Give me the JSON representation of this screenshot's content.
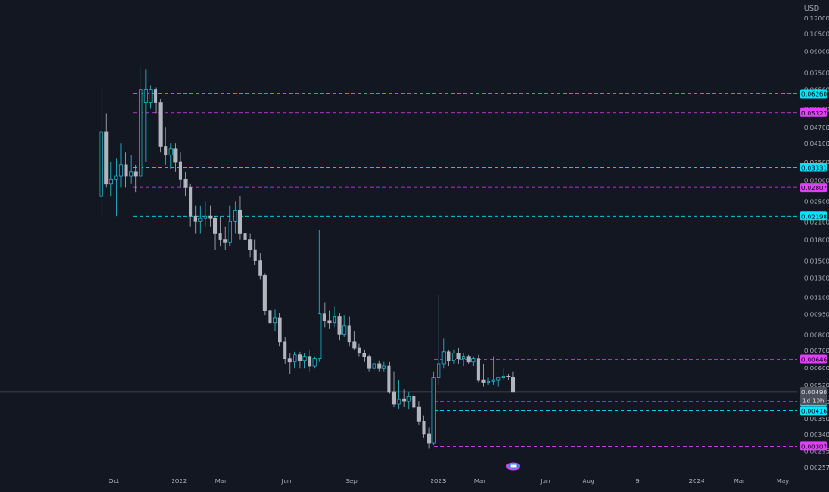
{
  "chart_data": {
    "type": "candlestick",
    "scale": "log",
    "currency": "USD",
    "y_ticks": [
      "0.12000",
      "0.10500",
      "0.09000",
      "0.07500",
      "0.06500",
      "0.05500",
      "0.04700",
      "0.04100",
      "0.03500",
      "0.03000",
      "0.02500",
      "0.02100",
      "0.01800",
      "0.01500",
      "0.01300",
      "0.01100",
      "0.00950",
      "0.00800",
      "0.00700",
      "0.00600",
      "0.00520",
      "0.00450",
      "0.00390",
      "0.00340",
      "0.00295",
      "0.00257"
    ],
    "x_ticks": [
      {
        "label": "Oct",
        "date": "2021-10-01"
      },
      {
        "label": "2022",
        "date": "2022-01-01"
      },
      {
        "label": "Mar",
        "date": "2022-03-01"
      },
      {
        "label": "Jun",
        "date": "2022-06-01"
      },
      {
        "label": "Sep",
        "date": "2022-09-01"
      },
      {
        "label": "2023",
        "date": "2023-01-01"
      },
      {
        "label": "Mar",
        "date": "2023-03-01"
      },
      {
        "label": "Jun",
        "date": "2023-06-01"
      },
      {
        "label": "Aug",
        "date": "2023-08-01"
      },
      {
        "label": "9",
        "date": "2023-10-09"
      },
      {
        "label": "2024",
        "date": "2024-01-01"
      },
      {
        "label": "Mar",
        "date": "2024-03-01"
      },
      {
        "label": "May",
        "date": "2024-05-01"
      }
    ],
    "levels": [
      {
        "label": "0.06260",
        "value": 0.0626,
        "color": "#00e5ff",
        "kind": "support"
      },
      {
        "label": "0.05327",
        "value": 0.05327,
        "color": "#e040fb",
        "kind": "resistance"
      },
      {
        "label": "0.03331",
        "value": 0.03331,
        "color": "#00e5ff",
        "kind": "support"
      },
      {
        "label": "0.02807",
        "value": 0.02807,
        "color": "#e040fb",
        "kind": "resistance"
      },
      {
        "label": "0.02198",
        "value": 0.02198,
        "color": "#00e5ff",
        "kind": "support"
      },
      {
        "label": "0.00646",
        "value": 0.00646,
        "color": "#e040fb",
        "kind": "resistance"
      },
      {
        "label": "0.00450",
        "value": 0.0045,
        "color": "#00e5ff",
        "kind": "support"
      },
      {
        "label": "0.00416",
        "value": 0.00416,
        "color": "#00e5ff",
        "kind": "support"
      },
      {
        "label": "0.00307",
        "value": 0.00307,
        "color": "#e040fb",
        "kind": "resistance"
      }
    ],
    "current_price": {
      "label": "0.00490",
      "value": 0.0049,
      "countdown": "1d 10h"
    },
    "candles": [
      {
        "date": "2021-09-13",
        "o": 0.026,
        "h": 0.067,
        "l": 0.022,
        "c": 0.045
      },
      {
        "date": "2021-09-20",
        "o": 0.045,
        "h": 0.053,
        "l": 0.028,
        "c": 0.029
      },
      {
        "date": "2021-09-27",
        "o": 0.029,
        "h": 0.035,
        "l": 0.026,
        "c": 0.03
      },
      {
        "date": "2021-10-04",
        "o": 0.03,
        "h": 0.036,
        "l": 0.022,
        "c": 0.031
      },
      {
        "date": "2021-10-11",
        "o": 0.031,
        "h": 0.041,
        "l": 0.028,
        "c": 0.034
      },
      {
        "date": "2021-10-18",
        "o": 0.034,
        "h": 0.038,
        "l": 0.028,
        "c": 0.031
      },
      {
        "date": "2021-10-25",
        "o": 0.031,
        "h": 0.037,
        "l": 0.029,
        "c": 0.032
      },
      {
        "date": "2021-11-01",
        "o": 0.032,
        "h": 0.034,
        "l": 0.027,
        "c": 0.031
      },
      {
        "date": "2021-11-08",
        "o": 0.031,
        "h": 0.079,
        "l": 0.03,
        "c": 0.065
      },
      {
        "date": "2021-11-15",
        "o": 0.058,
        "h": 0.077,
        "l": 0.035,
        "c": 0.065
      },
      {
        "date": "2021-11-22",
        "o": 0.058,
        "h": 0.067,
        "l": 0.055,
        "c": 0.065
      },
      {
        "date": "2021-11-29",
        "o": 0.065,
        "h": 0.066,
        "l": 0.053,
        "c": 0.058
      },
      {
        "date": "2021-12-06",
        "o": 0.058,
        "h": 0.06,
        "l": 0.038,
        "c": 0.04
      },
      {
        "date": "2021-12-13",
        "o": 0.04,
        "h": 0.047,
        "l": 0.034,
        "c": 0.037
      },
      {
        "date": "2021-12-20",
        "o": 0.037,
        "h": 0.041,
        "l": 0.033,
        "c": 0.039
      },
      {
        "date": "2021-12-27",
        "o": 0.039,
        "h": 0.041,
        "l": 0.032,
        "c": 0.035
      },
      {
        "date": "2022-01-03",
        "o": 0.035,
        "h": 0.038,
        "l": 0.028,
        "c": 0.03
      },
      {
        "date": "2022-01-10",
        "o": 0.03,
        "h": 0.032,
        "l": 0.026,
        "c": 0.028
      },
      {
        "date": "2022-01-17",
        "o": 0.028,
        "h": 0.029,
        "l": 0.02,
        "c": 0.022
      },
      {
        "date": "2022-01-24",
        "o": 0.022,
        "h": 0.024,
        "l": 0.019,
        "c": 0.021
      },
      {
        "date": "2022-01-31",
        "o": 0.021,
        "h": 0.024,
        "l": 0.019,
        "c": 0.0215
      },
      {
        "date": "2022-02-07",
        "o": 0.0215,
        "h": 0.025,
        "l": 0.02,
        "c": 0.022
      },
      {
        "date": "2022-02-14",
        "o": 0.022,
        "h": 0.024,
        "l": 0.02,
        "c": 0.0215
      },
      {
        "date": "2022-02-21",
        "o": 0.0215,
        "h": 0.022,
        "l": 0.0165,
        "c": 0.019
      },
      {
        "date": "2022-02-28",
        "o": 0.019,
        "h": 0.022,
        "l": 0.017,
        "c": 0.018
      },
      {
        "date": "2022-03-07",
        "o": 0.018,
        "h": 0.02,
        "l": 0.0165,
        "c": 0.0175
      },
      {
        "date": "2022-03-14",
        "o": 0.0175,
        "h": 0.024,
        "l": 0.017,
        "c": 0.021
      },
      {
        "date": "2022-03-21",
        "o": 0.021,
        "h": 0.025,
        "l": 0.019,
        "c": 0.023
      },
      {
        "date": "2022-03-28",
        "o": 0.023,
        "h": 0.026,
        "l": 0.018,
        "c": 0.019
      },
      {
        "date": "2022-04-04",
        "o": 0.019,
        "h": 0.02,
        "l": 0.017,
        "c": 0.018
      },
      {
        "date": "2022-04-11",
        "o": 0.018,
        "h": 0.019,
        "l": 0.0155,
        "c": 0.0165
      },
      {
        "date": "2022-04-18",
        "o": 0.0165,
        "h": 0.018,
        "l": 0.0145,
        "c": 0.015
      },
      {
        "date": "2022-04-25",
        "o": 0.015,
        "h": 0.016,
        "l": 0.0128,
        "c": 0.0132
      },
      {
        "date": "2022-05-02",
        "o": 0.0132,
        "h": 0.0135,
        "l": 0.0094,
        "c": 0.0098
      },
      {
        "date": "2022-05-09",
        "o": 0.0098,
        "h": 0.0102,
        "l": 0.0056,
        "c": 0.0088
      },
      {
        "date": "2022-05-16",
        "o": 0.0088,
        "h": 0.0099,
        "l": 0.0082,
        "c": 0.0092
      },
      {
        "date": "2022-05-23",
        "o": 0.0092,
        "h": 0.0096,
        "l": 0.0072,
        "c": 0.0075
      },
      {
        "date": "2022-05-30",
        "o": 0.0075,
        "h": 0.0078,
        "l": 0.0062,
        "c": 0.0065
      },
      {
        "date": "2022-06-06",
        "o": 0.0065,
        "h": 0.0068,
        "l": 0.0057,
        "c": 0.0063
      },
      {
        "date": "2022-06-13",
        "o": 0.0063,
        "h": 0.0069,
        "l": 0.006,
        "c": 0.0067
      },
      {
        "date": "2022-06-20",
        "o": 0.0067,
        "h": 0.0069,
        "l": 0.006,
        "c": 0.0064
      },
      {
        "date": "2022-06-27",
        "o": 0.0064,
        "h": 0.0068,
        "l": 0.006,
        "c": 0.0066
      },
      {
        "date": "2022-07-04",
        "o": 0.0066,
        "h": 0.007,
        "l": 0.0058,
        "c": 0.0061
      },
      {
        "date": "2022-07-11",
        "o": 0.0061,
        "h": 0.0066,
        "l": 0.006,
        "c": 0.0065
      },
      {
        "date": "2022-07-18",
        "o": 0.0065,
        "h": 0.0195,
        "l": 0.0063,
        "c": 0.0095
      },
      {
        "date": "2022-07-25",
        "o": 0.0095,
        "h": 0.0105,
        "l": 0.0085,
        "c": 0.009
      },
      {
        "date": "2022-08-01",
        "o": 0.009,
        "h": 0.0098,
        "l": 0.0084,
        "c": 0.0088
      },
      {
        "date": "2022-08-08",
        "o": 0.0088,
        "h": 0.0101,
        "l": 0.0085,
        "c": 0.0093
      },
      {
        "date": "2022-08-15",
        "o": 0.0093,
        "h": 0.0096,
        "l": 0.0076,
        "c": 0.008
      },
      {
        "date": "2022-08-22",
        "o": 0.008,
        "h": 0.0094,
        "l": 0.0078,
        "c": 0.0086
      },
      {
        "date": "2022-08-29",
        "o": 0.0086,
        "h": 0.0093,
        "l": 0.0072,
        "c": 0.0075
      },
      {
        "date": "2022-09-05",
        "o": 0.0075,
        "h": 0.0082,
        "l": 0.007,
        "c": 0.0071
      },
      {
        "date": "2022-09-12",
        "o": 0.0071,
        "h": 0.0074,
        "l": 0.0066,
        "c": 0.0068
      },
      {
        "date": "2022-09-19",
        "o": 0.0068,
        "h": 0.007,
        "l": 0.0063,
        "c": 0.0066
      },
      {
        "date": "2022-09-26",
        "o": 0.0066,
        "h": 0.0067,
        "l": 0.0058,
        "c": 0.006
      },
      {
        "date": "2022-10-03",
        "o": 0.006,
        "h": 0.0064,
        "l": 0.0057,
        "c": 0.0062
      },
      {
        "date": "2022-10-10",
        "o": 0.0062,
        "h": 0.0064,
        "l": 0.0058,
        "c": 0.006
      },
      {
        "date": "2022-10-17",
        "o": 0.006,
        "h": 0.0063,
        "l": 0.0058,
        "c": 0.0061
      },
      {
        "date": "2022-10-24",
        "o": 0.0061,
        "h": 0.0063,
        "l": 0.0048,
        "c": 0.0049
      },
      {
        "date": "2022-10-31",
        "o": 0.0049,
        "h": 0.0058,
        "l": 0.0043,
        "c": 0.0044
      },
      {
        "date": "2022-11-07",
        "o": 0.0044,
        "h": 0.0054,
        "l": 0.0042,
        "c": 0.0046
      },
      {
        "date": "2022-11-14",
        "o": 0.0046,
        "h": 0.005,
        "l": 0.0043,
        "c": 0.0045
      },
      {
        "date": "2022-11-21",
        "o": 0.0045,
        "h": 0.0049,
        "l": 0.0042,
        "c": 0.0047
      },
      {
        "date": "2022-11-28",
        "o": 0.0047,
        "h": 0.0048,
        "l": 0.0042,
        "c": 0.0043
      },
      {
        "date": "2022-12-05",
        "o": 0.0043,
        "h": 0.0045,
        "l": 0.0037,
        "c": 0.0038
      },
      {
        "date": "2022-12-12",
        "o": 0.0038,
        "h": 0.004,
        "l": 0.0033,
        "c": 0.0034
      },
      {
        "date": "2022-12-19",
        "o": 0.0034,
        "h": 0.0036,
        "l": 0.003,
        "c": 0.00315
      },
      {
        "date": "2022-12-26",
        "o": 0.00315,
        "h": 0.0058,
        "l": 0.0031,
        "c": 0.0055
      },
      {
        "date": "2023-01-02",
        "o": 0.0055,
        "h": 0.0112,
        "l": 0.0052,
        "c": 0.0062
      },
      {
        "date": "2023-01-09",
        "o": 0.0062,
        "h": 0.0077,
        "l": 0.006,
        "c": 0.0069
      },
      {
        "date": "2023-01-16",
        "o": 0.0069,
        "h": 0.007,
        "l": 0.0061,
        "c": 0.0064
      },
      {
        "date": "2023-01-23",
        "o": 0.0064,
        "h": 0.007,
        "l": 0.0062,
        "c": 0.0068
      },
      {
        "date": "2023-01-30",
        "o": 0.0068,
        "h": 0.0071,
        "l": 0.0062,
        "c": 0.0065
      },
      {
        "date": "2023-02-06",
        "o": 0.0065,
        "h": 0.0068,
        "l": 0.0061,
        "c": 0.0066
      },
      {
        "date": "2023-02-13",
        "o": 0.0066,
        "h": 0.0067,
        "l": 0.0062,
        "c": 0.0063
      },
      {
        "date": "2023-02-20",
        "o": 0.0063,
        "h": 0.0066,
        "l": 0.0061,
        "c": 0.0065
      },
      {
        "date": "2023-02-27",
        "o": 0.0065,
        "h": 0.0067,
        "l": 0.0053,
        "c": 0.0054
      },
      {
        "date": "2023-03-06",
        "o": 0.0054,
        "h": 0.0062,
        "l": 0.0051,
        "c": 0.0053
      },
      {
        "date": "2023-03-13",
        "o": 0.0053,
        "h": 0.0055,
        "l": 0.0052,
        "c": 0.00535
      },
      {
        "date": "2023-03-20",
        "o": 0.00535,
        "h": 0.0066,
        "l": 0.0052,
        "c": 0.0054
      },
      {
        "date": "2023-03-27",
        "o": 0.0054,
        "h": 0.0055,
        "l": 0.0051,
        "c": 0.0055
      },
      {
        "date": "2023-04-03",
        "o": 0.0055,
        "h": 0.006,
        "l": 0.0054,
        "c": 0.0056
      },
      {
        "date": "2023-04-10",
        "o": 0.0056,
        "h": 0.0057,
        "l": 0.0054,
        "c": 0.00555
      },
      {
        "date": "2023-04-17",
        "o": 0.00555,
        "h": 0.0058,
        "l": 0.0052,
        "c": 0.0049
      }
    ]
  },
  "colors": {
    "background": "#131722",
    "bull_body": "#131722",
    "bull_outline": "#26c6da",
    "bear_body": "#b2b5be",
    "bear_outline": "#b2b5be",
    "axis_text": "#b2b5be",
    "price_tag_bg": "#4a4f5c"
  },
  "footer_icon": "event-flag-icon"
}
